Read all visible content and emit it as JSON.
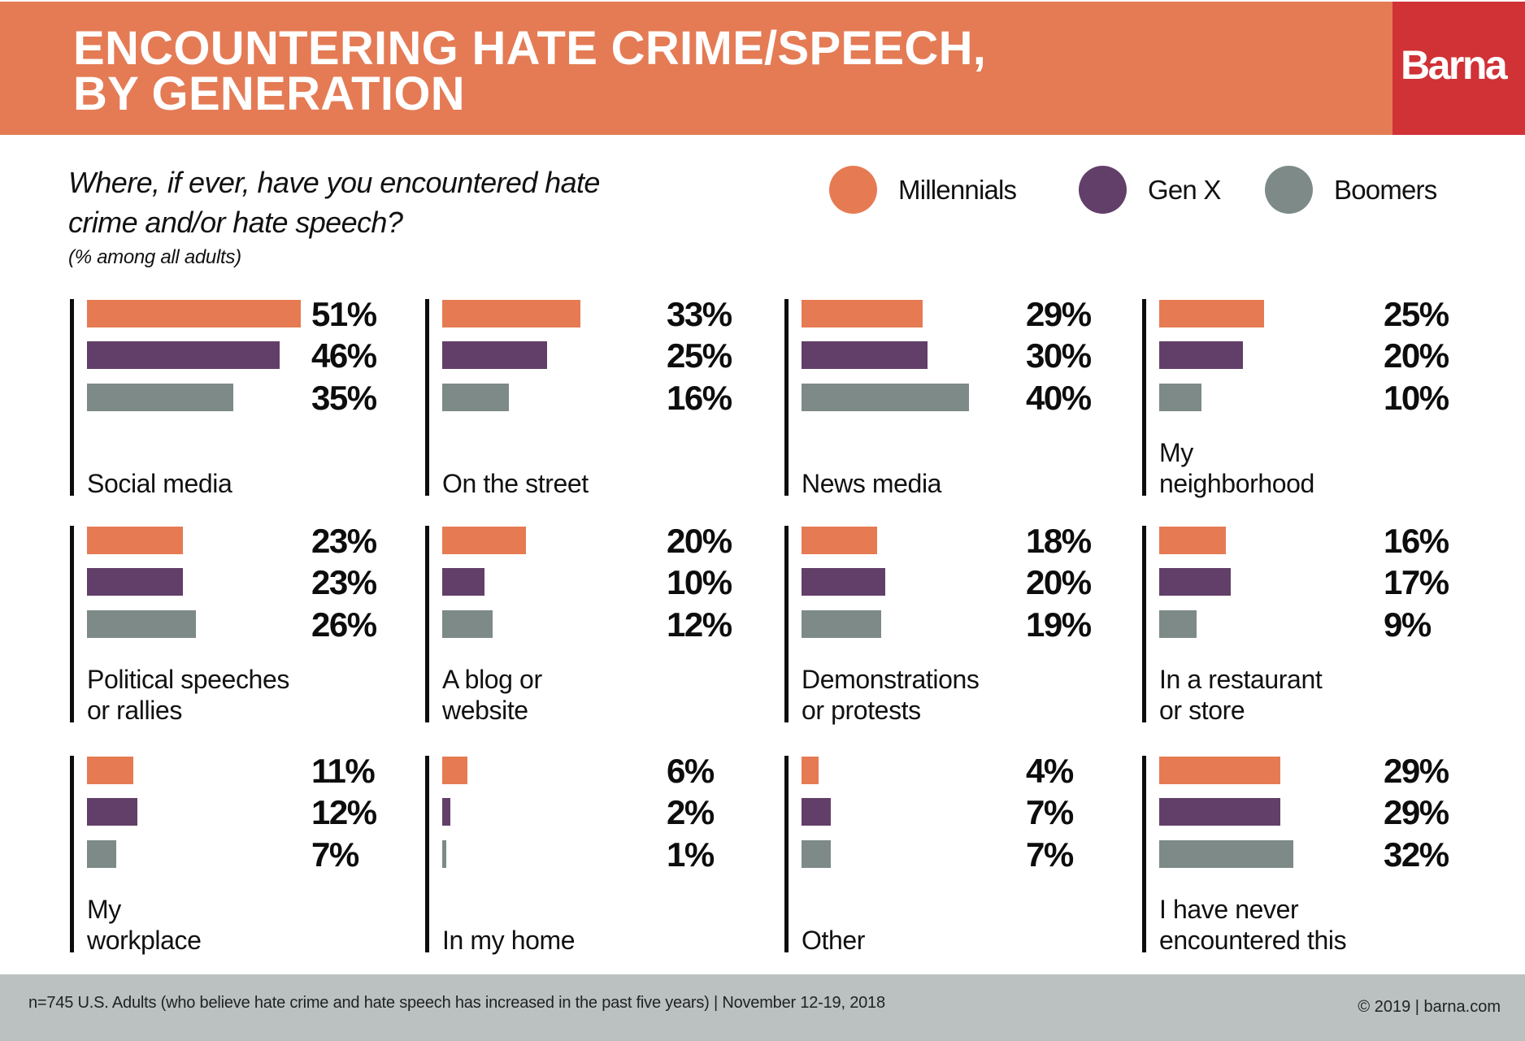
{
  "header": {
    "title": "ENCOUNTERING HATE CRIME/SPEECH,\nBY GENERATION",
    "brand": "Barna"
  },
  "question": {
    "text": "Where, if ever, have you encountered hate crime and/or hate speech?",
    "note": "(% among all adults)"
  },
  "colors": {
    "header": "#E47B55",
    "brand": "#D03236",
    "millennials": "#E67B53",
    "genx": "#623F69",
    "boomers": "#7D8A87",
    "footer": "#BAC1C0"
  },
  "footer": {
    "note": "n=745 U.S. Adults (who believe hate crime and hate speech has increased in the past five years) | November 12-19, 2018",
    "copyright": "© 2019 | barna.com"
  },
  "chart_data": {
    "type": "bar",
    "orientation": "horizontal",
    "title": "ENCOUNTERING HATE CRIME/SPEECH, BY GENERATION",
    "subtitle": "Where, if ever, have you encountered hate crime and/or hate speech?",
    "note": "(% among all adults)",
    "unit": "%",
    "legend": {
      "placement": "top-right",
      "entries": [
        "Millennials",
        "Gen X",
        "Boomers"
      ]
    },
    "series_names": [
      "Millennials",
      "Gen X",
      "Boomers"
    ],
    "categories": [
      "Social media",
      "On the street",
      "News media",
      "My\nneighborhood",
      "Political speeches\nor rallies",
      "A blog or\nwebsite",
      "Demonstrations\nor protests",
      "In a restaurant\nor store",
      "My\nworkplace",
      "In my home",
      "Other",
      "I have never\nencountered this"
    ],
    "series": [
      {
        "name": "Millennials",
        "values": [
          51,
          33,
          29,
          25,
          23,
          20,
          18,
          16,
          11,
          6,
          4,
          29
        ]
      },
      {
        "name": "Gen X",
        "values": [
          46,
          25,
          30,
          20,
          23,
          10,
          20,
          17,
          12,
          2,
          7,
          29
        ]
      },
      {
        "name": "Boomers",
        "values": [
          35,
          16,
          40,
          10,
          26,
          12,
          19,
          9,
          7,
          1,
          7,
          32
        ]
      }
    ],
    "value_labels": [
      [
        "51%",
        "46%",
        "35%"
      ],
      [
        "33%",
        "25%",
        "16%"
      ],
      [
        "29%",
        "30%",
        "40%"
      ],
      [
        "25%",
        "20%",
        "10%"
      ],
      [
        "23%",
        "23%",
        "26%"
      ],
      [
        "20%",
        "10%",
        "12%"
      ],
      [
        "18%",
        "20%",
        "19%"
      ],
      [
        "16%",
        "17%",
        "9%"
      ],
      [
        "11%",
        "12%",
        "7%"
      ],
      [
        "6%",
        "2%",
        "1%"
      ],
      [
        "4%",
        "7%",
        "7%"
      ],
      [
        "29%",
        "29%",
        "32%"
      ]
    ],
    "layout": "small multiples, 4 columns x 3 rows",
    "grid": false
  }
}
